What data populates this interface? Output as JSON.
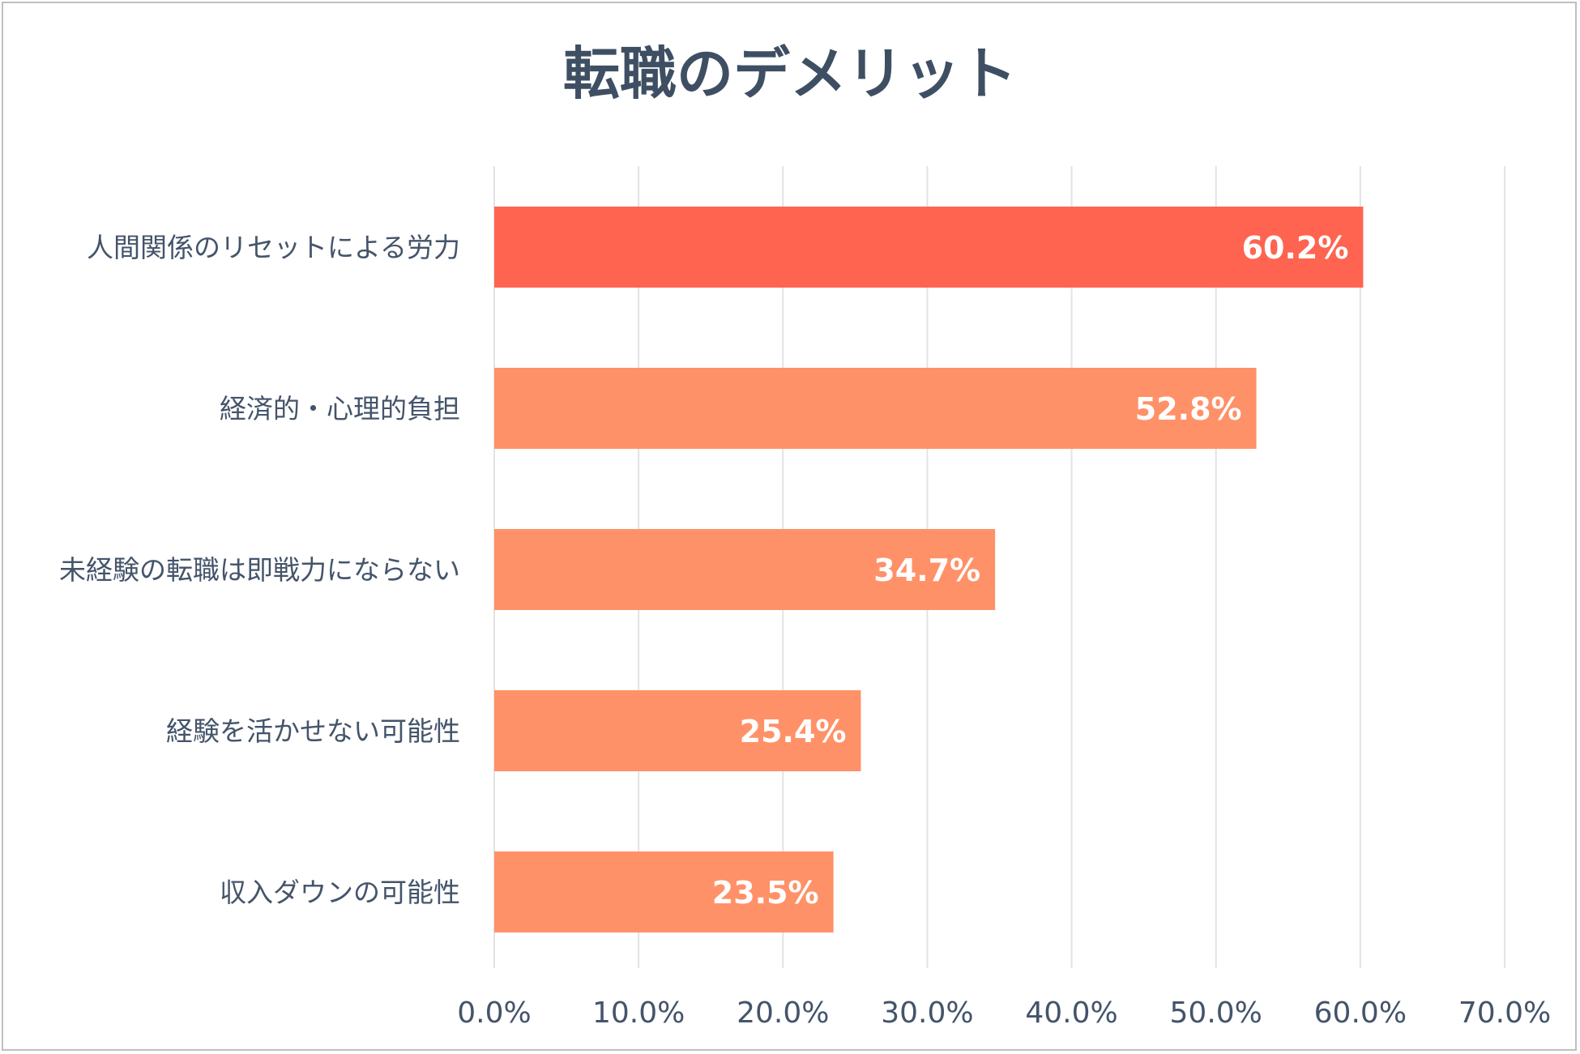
{
  "chart_data": {
    "type": "bar",
    "orientation": "horizontal",
    "title": "転職のデメリット",
    "xlabel": "",
    "ylabel": "",
    "categories": [
      "人間関係のリセットによる労力",
      "経済的・心理的負担",
      "未経験の転職は即戦力にならない",
      "経験を活かせない可能性",
      "収入ダウンの可能性"
    ],
    "values": [
      60.2,
      52.8,
      34.7,
      25.4,
      23.5
    ],
    "value_labels": [
      "60.2%",
      "52.8%",
      "34.7%",
      "25.4%",
      "23.5%"
    ],
    "xlim": [
      0,
      70
    ],
    "ticks": [
      0,
      10,
      20,
      30,
      40,
      50,
      60,
      70
    ],
    "tick_labels": [
      "0.0%",
      "10.0%",
      "20.0%",
      "30.0%",
      "40.0%",
      "50.0%",
      "60.0%",
      "70.0%"
    ],
    "grid": true,
    "legend": "none",
    "colors": {
      "highlight": "#ff6450",
      "bar": "#ff9168",
      "grid": "#e3e3e3",
      "text": "#44546a",
      "title": "#3f4f63"
    }
  }
}
